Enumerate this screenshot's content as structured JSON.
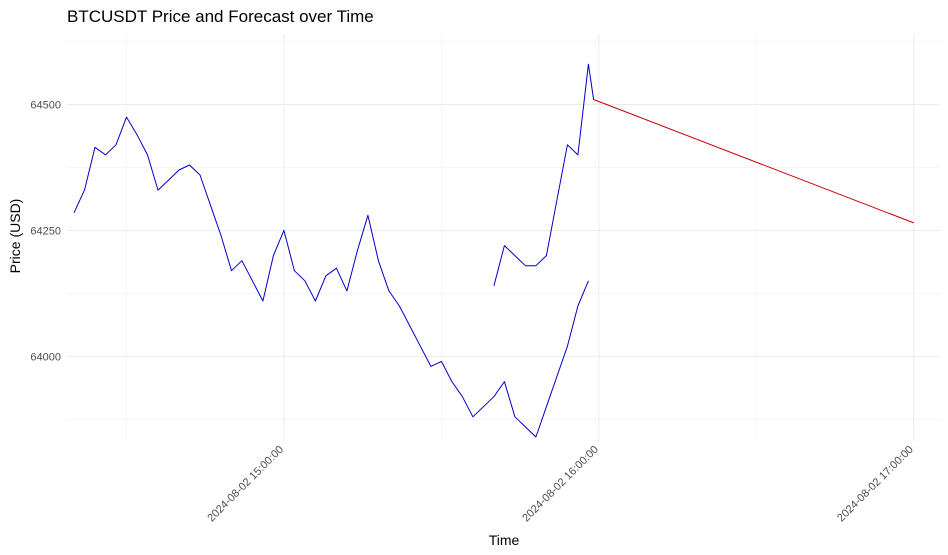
{
  "chart_data": {
    "type": "line",
    "title": "BTCUSDT Price and Forecast over Time",
    "xlabel": "Time",
    "ylabel": "Price (USD)",
    "ylim": [
      63830,
      64640
    ],
    "xlim": [
      "2024-08-02 14:18:40",
      "2024-08-02 17:05:00"
    ],
    "x_ticks": [
      "2024-08-02 15:00:00",
      "2024-08-02 16:00:00",
      "2024-08-02 17:00:00"
    ],
    "y_ticks": [
      64000,
      64250,
      64500
    ],
    "grid": true,
    "series": [
      {
        "color": "#0000cc",
        "x": [
          "2024-08-02 14:20:00",
          "2024-08-02 14:22:00",
          "2024-08-02 14:24:00",
          "2024-08-02 14:26:00",
          "2024-08-02 14:28:00",
          "2024-08-02 14:30:00",
          "2024-08-02 14:32:00",
          "2024-08-02 14:34:00",
          "2024-08-02 14:36:00",
          "2024-08-02 14:38:00",
          "2024-08-02 14:40:00",
          "2024-08-02 14:42:00",
          "2024-08-02 14:44:00",
          "2024-08-02 14:46:00",
          "2024-08-02 14:48:00",
          "2024-08-02 14:50:00",
          "2024-08-02 14:52:00",
          "2024-08-02 14:54:00",
          "2024-08-02 14:56:00",
          "2024-08-02 14:58:00",
          "2024-08-02 15:00:00",
          "2024-08-02 15:02:00",
          "2024-08-02 15:04:00",
          "2024-08-02 15:06:00",
          "2024-08-02 15:08:00",
          "2024-08-02 15:10:00",
          "2024-08-02 15:12:00",
          "2024-08-02 15:14:00",
          "2024-08-02 15:16:00",
          "2024-08-02 15:18:00",
          "2024-08-02 15:20:00",
          "2024-08-02 15:22:00",
          "2024-08-02 15:24:00",
          "2024-08-02 15:26:00",
          "2024-08-02 15:28:00",
          "2024-08-02 15:30:00",
          "2024-08-02 15:32:00",
          "2024-08-02 15:34:00",
          "2024-08-02 15:36:00",
          "2024-08-02 15:38:00",
          "2024-08-02 15:40:00",
          "2024-08-02 15:42:00",
          "2024-08-02 15:44:00",
          "2024-08-02 15:46:00",
          "2024-08-02 15:48:00",
          "2024-08-02 15:50:00",
          "2024-08-02 15:52:00",
          "2024-08-02 15:54:00",
          "2024-08-02 15:56:00",
          "2024-08-02 15:58:00"
        ],
        "y": [
          64285,
          64330,
          64415,
          64400,
          64420,
          64475,
          64440,
          64400,
          64330,
          64350,
          64370,
          64380,
          64360,
          64300,
          64240,
          64170,
          64190,
          64150,
          64110,
          64200,
          64250,
          64170,
          64150,
          64110,
          64160,
          64175,
          64130,
          64210,
          64280,
          64190,
          64130,
          64100,
          64060,
          64020,
          63980,
          63990,
          63950,
          63920,
          63880,
          63900,
          63920,
          63950,
          63880,
          63860,
          63840,
          63900,
          63960,
          64020,
          64100,
          64150
        ]
      },
      {
        "color": "#0000cc",
        "x": [
          "2024-08-02 15:40:00",
          "2024-08-02 15:42:00",
          "2024-08-02 15:44:00",
          "2024-08-02 15:46:00",
          "2024-08-02 15:48:00",
          "2024-08-02 15:50:00",
          "2024-08-02 15:52:00",
          "2024-08-02 15:54:00",
          "2024-08-02 15:56:00",
          "2024-08-02 15:58:00",
          "2024-08-02 15:59:00"
        ],
        "y": [
          64140,
          64220,
          64200,
          64180,
          64180,
          64200,
          64310,
          64420,
          64400,
          64580,
          64510
        ]
      },
      {
        "color": "#cc0000",
        "x": [
          "2024-08-02 15:59:00",
          "2024-08-02 17:00:00"
        ],
        "y": [
          64510,
          64265
        ]
      }
    ]
  }
}
